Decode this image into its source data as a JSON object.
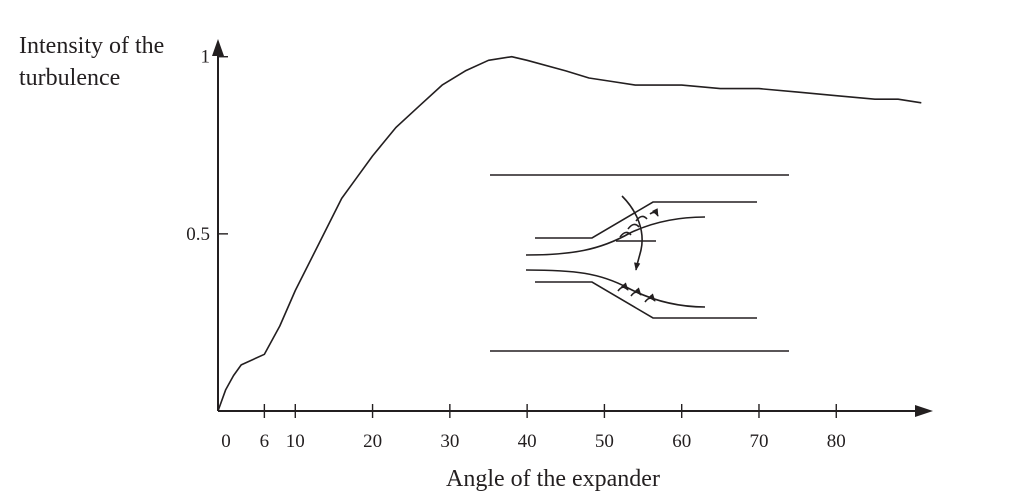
{
  "chart_data": {
    "type": "line",
    "title": "",
    "ylabel_lines": [
      "Intensity of the",
      "turbulence"
    ],
    "xlabel": "Angle of the expander",
    "xlim": [
      0,
      92
    ],
    "ylim": [
      0,
      1.05
    ],
    "x_ticks": [
      0,
      6,
      10,
      20,
      30,
      40,
      50,
      60,
      70,
      80
    ],
    "y_ticks": [
      0.5,
      1
    ],
    "grid": false,
    "series": [
      {
        "x": [
          0,
          1,
          2,
          3,
          6,
          8,
          10,
          13,
          16,
          18,
          20,
          23,
          26,
          29,
          32,
          35,
          38,
          40,
          45,
          48,
          51,
          54,
          57,
          60,
          65,
          70,
          75,
          80,
          85,
          88,
          91
        ],
        "y": [
          0.0,
          0.06,
          0.1,
          0.13,
          0.16,
          0.24,
          0.34,
          0.47,
          0.6,
          0.66,
          0.72,
          0.8,
          0.86,
          0.92,
          0.96,
          0.99,
          1.0,
          0.99,
          0.96,
          0.94,
          0.93,
          0.92,
          0.92,
          0.92,
          0.91,
          0.91,
          0.9,
          0.89,
          0.88,
          0.88,
          0.87
        ]
      }
    ]
  }
}
